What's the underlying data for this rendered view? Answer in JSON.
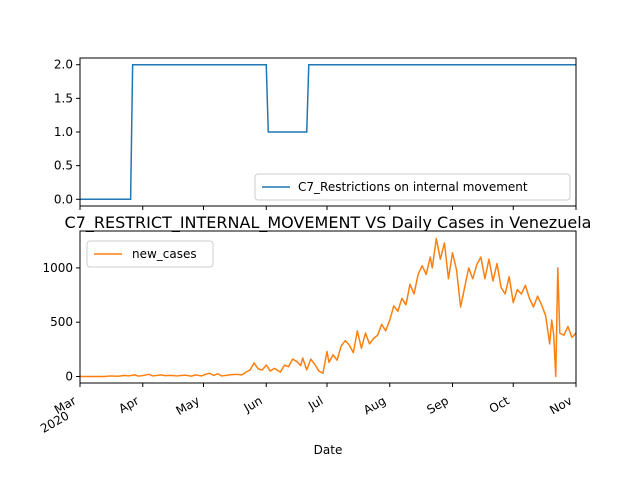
{
  "chart_data": [
    {
      "type": "line",
      "title": "",
      "xlabel": "",
      "ylabel": "",
      "ylim": [
        -0.1,
        2.1
      ],
      "yticks": [
        "0.0",
        "0.5",
        "1.0",
        "1.5",
        "2.0"
      ],
      "ytick_values": [
        0.0,
        0.5,
        1.0,
        1.5,
        2.0
      ],
      "grid": false,
      "legend_position": "lower-right",
      "series": [
        {
          "name": "C7_Restrictions on internal movement",
          "color": "#1f77b4",
          "points": [
            [
              "2020-03-01",
              0
            ],
            [
              "2020-03-26",
              0
            ],
            [
              "2020-03-27",
              2
            ],
            [
              "2020-06-01",
              2
            ],
            [
              "2020-06-02",
              1
            ],
            [
              "2020-06-21",
              1
            ],
            [
              "2020-06-22",
              2
            ],
            [
              "2020-11-01",
              2
            ]
          ]
        }
      ]
    },
    {
      "type": "line",
      "title": "C7_RESTRICT_INTERNAL_MOVEMENT VS Daily Cases in Venezuela",
      "xlabel": "Date",
      "ylabel": "",
      "ylim": [
        -60,
        1340
      ],
      "yticks": [
        "0",
        "500",
        "1000"
      ],
      "ytick_values": [
        0,
        500,
        1000
      ],
      "xlim": [
        "2020-03-01",
        "2020-11-01"
      ],
      "xticks": [
        {
          "date": "2020-03-01",
          "label": "Mar",
          "sublabel": "2020"
        },
        {
          "date": "2020-04-01",
          "label": "Apr",
          "sublabel": ""
        },
        {
          "date": "2020-05-01",
          "label": "May",
          "sublabel": ""
        },
        {
          "date": "2020-06-01",
          "label": "Jun",
          "sublabel": ""
        },
        {
          "date": "2020-07-01",
          "label": "Jul",
          "sublabel": ""
        },
        {
          "date": "2020-08-01",
          "label": "Aug",
          "sublabel": ""
        },
        {
          "date": "2020-09-01",
          "label": "Sep",
          "sublabel": ""
        },
        {
          "date": "2020-10-01",
          "label": "Oct",
          "sublabel": ""
        },
        {
          "date": "2020-11-01",
          "label": "Nov",
          "sublabel": ""
        }
      ],
      "grid": false,
      "legend_position": "upper-left",
      "series": [
        {
          "name": "new_cases",
          "color": "#ff7f0e",
          "points": [
            [
              "2020-03-01",
              0
            ],
            [
              "2020-03-13",
              0
            ],
            [
              "2020-03-16",
              5
            ],
            [
              "2020-03-20",
              2
            ],
            [
              "2020-03-23",
              10
            ],
            [
              "2020-03-25",
              5
            ],
            [
              "2020-03-28",
              15
            ],
            [
              "2020-03-30",
              3
            ],
            [
              "2020-04-02",
              12
            ],
            [
              "2020-04-04",
              20
            ],
            [
              "2020-04-06",
              5
            ],
            [
              "2020-04-10",
              15
            ],
            [
              "2020-04-12",
              8
            ],
            [
              "2020-04-15",
              10
            ],
            [
              "2020-04-18",
              5
            ],
            [
              "2020-04-22",
              12
            ],
            [
              "2020-04-25",
              3
            ],
            [
              "2020-04-27",
              15
            ],
            [
              "2020-04-30",
              5
            ],
            [
              "2020-05-02",
              20
            ],
            [
              "2020-05-04",
              30
            ],
            [
              "2020-05-06",
              10
            ],
            [
              "2020-05-08",
              25
            ],
            [
              "2020-05-10",
              5
            ],
            [
              "2020-05-14",
              15
            ],
            [
              "2020-05-17",
              20
            ],
            [
              "2020-05-20",
              15
            ],
            [
              "2020-05-22",
              40
            ],
            [
              "2020-05-24",
              60
            ],
            [
              "2020-05-26",
              125
            ],
            [
              "2020-05-28",
              70
            ],
            [
              "2020-05-30",
              60
            ],
            [
              "2020-06-01",
              105
            ],
            [
              "2020-06-03",
              50
            ],
            [
              "2020-06-05",
              75
            ],
            [
              "2020-06-08",
              40
            ],
            [
              "2020-06-10",
              105
            ],
            [
              "2020-06-12",
              90
            ],
            [
              "2020-06-14",
              160
            ],
            [
              "2020-06-16",
              140
            ],
            [
              "2020-06-18",
              100
            ],
            [
              "2020-06-19",
              170
            ],
            [
              "2020-06-21",
              60
            ],
            [
              "2020-06-23",
              160
            ],
            [
              "2020-06-25",
              110
            ],
            [
              "2020-06-27",
              50
            ],
            [
              "2020-06-29",
              30
            ],
            [
              "2020-07-01",
              230
            ],
            [
              "2020-07-02",
              130
            ],
            [
              "2020-07-04",
              200
            ],
            [
              "2020-07-06",
              150
            ],
            [
              "2020-07-08",
              280
            ],
            [
              "2020-07-10",
              330
            ],
            [
              "2020-07-12",
              290
            ],
            [
              "2020-07-14",
              220
            ],
            [
              "2020-07-16",
              420
            ],
            [
              "2020-07-18",
              260
            ],
            [
              "2020-07-20",
              400
            ],
            [
              "2020-07-22",
              300
            ],
            [
              "2020-07-24",
              350
            ],
            [
              "2020-07-26",
              380
            ],
            [
              "2020-07-28",
              480
            ],
            [
              "2020-07-30",
              420
            ],
            [
              "2020-08-01",
              520
            ],
            [
              "2020-08-03",
              650
            ],
            [
              "2020-08-05",
              600
            ],
            [
              "2020-08-07",
              720
            ],
            [
              "2020-08-09",
              660
            ],
            [
              "2020-08-11",
              850
            ],
            [
              "2020-08-13",
              760
            ],
            [
              "2020-08-15",
              940
            ],
            [
              "2020-08-17",
              1020
            ],
            [
              "2020-08-19",
              940
            ],
            [
              "2020-08-21",
              1100
            ],
            [
              "2020-08-22",
              1000
            ],
            [
              "2020-08-24",
              1270
            ],
            [
              "2020-08-26",
              1080
            ],
            [
              "2020-08-28",
              1230
            ],
            [
              "2020-08-30",
              900
            ],
            [
              "2020-09-01",
              1140
            ],
            [
              "2020-09-03",
              980
            ],
            [
              "2020-09-05",
              640
            ],
            [
              "2020-09-07",
              820
            ],
            [
              "2020-09-09",
              1000
            ],
            [
              "2020-09-11",
              900
            ],
            [
              "2020-09-13",
              1030
            ],
            [
              "2020-09-15",
              1100
            ],
            [
              "2020-09-17",
              900
            ],
            [
              "2020-09-19",
              1080
            ],
            [
              "2020-09-21",
              880
            ],
            [
              "2020-09-23",
              1040
            ],
            [
              "2020-09-25",
              820
            ],
            [
              "2020-09-27",
              760
            ],
            [
              "2020-09-29",
              920
            ],
            [
              "2020-10-01",
              680
            ],
            [
              "2020-10-03",
              800
            ],
            [
              "2020-10-05",
              760
            ],
            [
              "2020-10-07",
              840
            ],
            [
              "2020-10-09",
              720
            ],
            [
              "2020-10-11",
              640
            ],
            [
              "2020-10-13",
              740
            ],
            [
              "2020-10-15",
              660
            ],
            [
              "2020-10-17",
              560
            ],
            [
              "2020-10-19",
              300
            ],
            [
              "2020-10-20",
              520
            ],
            [
              "2020-10-21",
              380
            ],
            [
              "2020-10-22",
              0
            ],
            [
              "2020-10-23",
              1000
            ],
            [
              "2020-10-24",
              400
            ],
            [
              "2020-10-26",
              380
            ],
            [
              "2020-10-28",
              460
            ],
            [
              "2020-10-30",
              360
            ],
            [
              "2020-11-01",
              400
            ]
          ]
        }
      ]
    }
  ]
}
